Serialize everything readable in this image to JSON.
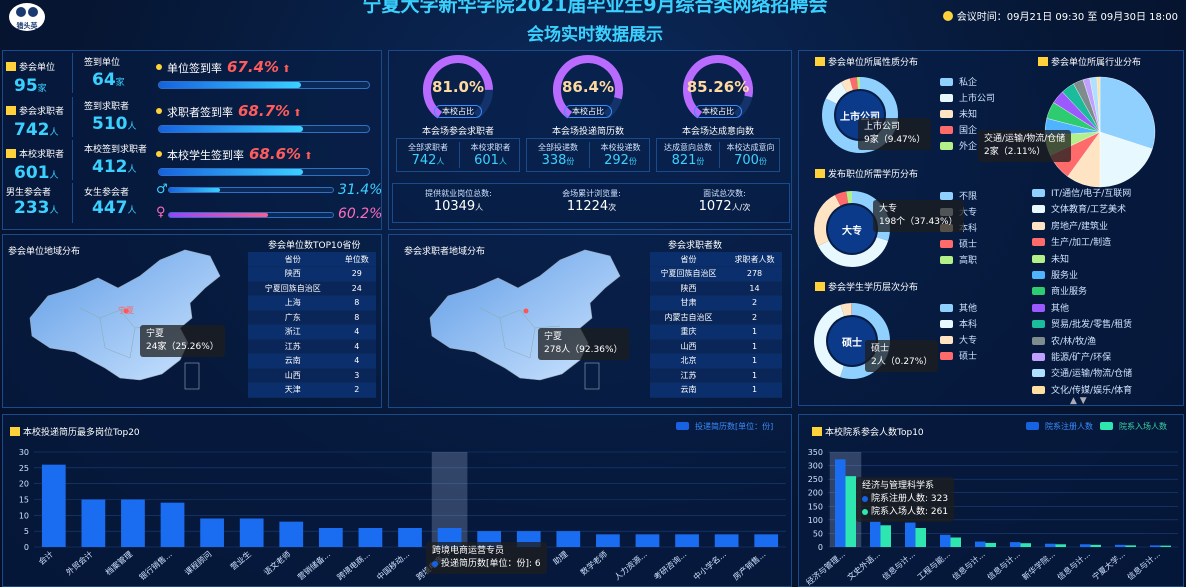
{
  "header": {
    "title": "宁夏大学新华学院2021届毕业生9月综合类网络招聘会",
    "subtitle": "会场实时数据展示",
    "logo_text": "猎头英",
    "meeting_time": "会议时间：09月21日 09:30 至 09月30日 18:00"
  },
  "stats": {
    "rows": [
      {
        "a_label": "参会单位",
        "a_value": "95",
        "a_unit": "家",
        "b_label": "签到单位",
        "b_value": "64",
        "b_unit": "家",
        "rate_label": "单位签到率",
        "rate": "67.4%",
        "rate_fraction": 0.674
      },
      {
        "a_label": "参会求职者",
        "a_value": "742",
        "a_unit": "人",
        "b_label": "签到求职者",
        "b_value": "510",
        "b_unit": "人",
        "rate_label": "求职者签到率",
        "rate": "68.7%",
        "rate_fraction": 0.687
      },
      {
        "a_label": "本校求职者",
        "a_value": "601",
        "a_unit": "人",
        "b_label": "本校签到求职者",
        "b_value": "412",
        "b_unit": "人",
        "rate_label": "本校学生签到率",
        "rate": "68.6%",
        "rate_fraction": 0.686
      }
    ],
    "gender": {
      "male_label": "男生参会者",
      "male_value": "233",
      "male_unit": "人",
      "female_label": "女生参会者",
      "female_value": "447",
      "female_unit": "人",
      "male_rate": "31.4%",
      "male_fraction": 0.314,
      "female_rate": "60.2%",
      "female_fraction": 0.602
    }
  },
  "gauges": [
    {
      "value": "81.0%",
      "fraction": 0.81,
      "inner": "本校占比",
      "caption": "本会场参会求职者",
      "l_label": "全部求职者",
      "l_value": "742",
      "l_unit": "人",
      "r_label": "本校求职者",
      "r_value": "601",
      "r_unit": "人"
    },
    {
      "value": "86.4%",
      "fraction": 0.864,
      "inner": "本校占比",
      "caption": "本会场投递简历数",
      "l_label": "全部投递数",
      "l_value": "338",
      "l_unit": "份",
      "r_label": "本校投递数",
      "r_value": "292",
      "r_unit": "份"
    },
    {
      "value": "85.26%",
      "fraction": 0.8526,
      "inner": "本校占比",
      "caption": "本会场达成意向数",
      "l_label": "达成意向总数",
      "l_value": "821",
      "l_unit": "份",
      "r_label": "本校达成意向",
      "r_value": "700",
      "r_unit": "份"
    }
  ],
  "summary": [
    {
      "label": "提供就业岗位总数:",
      "value": "10349",
      "unit": "人"
    },
    {
      "label": "会场累计浏览量:",
      "value": "11224",
      "unit": "次"
    },
    {
      "label": "面试总次数:",
      "value": "1072",
      "unit": "人/次"
    }
  ],
  "company_map": {
    "title": "参会单位地域分布",
    "table_title": "参会单位数TOP10省份",
    "col1": "省份",
    "col2": "单位数",
    "rows": [
      [
        "陕西",
        "29"
      ],
      [
        "宁夏回族自治区",
        "24"
      ],
      [
        "上海",
        "8"
      ],
      [
        "广东",
        "8"
      ],
      [
        "浙江",
        "4"
      ],
      [
        "江苏",
        "4"
      ],
      [
        "云南",
        "4"
      ],
      [
        "山西",
        "3"
      ],
      [
        "天津",
        "2"
      ]
    ],
    "marker": "宁夏",
    "tip_name": "宁夏",
    "tip_value": "24家（25.26%）"
  },
  "seeker_map": {
    "title": "参会求职者地域分布",
    "table_title": "参会求职者数",
    "col1": "省份",
    "col2": "求职者人数",
    "rows": [
      [
        "宁夏回族自治区",
        "278"
      ],
      [
        "陕西",
        "14"
      ],
      [
        "甘肃",
        "2"
      ],
      [
        "内蒙古自治区",
        "2"
      ],
      [
        "重庆",
        "1"
      ],
      [
        "山西",
        "1"
      ],
      [
        "北京",
        "1"
      ],
      [
        "江苏",
        "1"
      ],
      [
        "云南",
        "1"
      ]
    ],
    "marker": "宁夏",
    "tip_name": "宁夏",
    "tip_value": "278人（92.36%）"
  },
  "nature": {
    "title": "参会单位所属性质分布",
    "center": "上市公司",
    "legend": [
      "私企",
      "上市公司",
      "未知",
      "国企",
      "外企"
    ],
    "colors": [
      "#8fd0ff",
      "#e8f8ff",
      "#ffe4c4",
      "#ff6b6b",
      "#b4f08a"
    ],
    "tip_name": "上市公司",
    "tip_value": "9家（9.47%）"
  },
  "education": {
    "title": "发布职位所需学历分布",
    "center": "大专",
    "legend": [
      "不限",
      "大专",
      "本科",
      "硕士",
      "高职"
    ],
    "colors": [
      "#8fd0ff",
      "#e8f8ff",
      "#ffe4c4",
      "#ff6b6b",
      "#b4f08a"
    ],
    "tip_name": "大专",
    "tip_value": "198个（37.43%）"
  },
  "student_edu": {
    "title": "参会学生学历层次分布",
    "center": "硕士",
    "legend": [
      "其他",
      "本科",
      "大专",
      "硕士"
    ],
    "colors": [
      "#8fd0ff",
      "#e8f8ff",
      "#ffe4c4",
      "#ff6b6b"
    ],
    "tip_name": "硕士",
    "tip_value": "2人（0.27%）"
  },
  "industry": {
    "title": "参会单位所属行业分布",
    "tip_name": "交通/运输/物流/仓储",
    "tip_value": "2家（2.11%）",
    "legend": [
      "IT/通信/电子/互联网",
      "文体教育/工艺美术",
      "房地产/建筑业",
      "生产/加工/制造",
      "未知",
      "服务业",
      "商业服务",
      "其他",
      "贸易/批发/零售/租赁",
      "农/林/牧/渔",
      "能源/矿产/环保",
      "交通/运输/物流/仓储",
      "文化/传媒/娱乐/体育"
    ],
    "colors": [
      "#8fd0ff",
      "#e8f8ff",
      "#ffe4c4",
      "#ff6b6b",
      "#b4f08a",
      "#4fb3ff",
      "#2ecc71",
      "#9b59ff",
      "#1abc9c",
      "#7f8c8d",
      "#c0a0ff",
      "#b0e0ff",
      "#ffe0a0"
    ]
  },
  "positions": {
    "title": "本校投递简历最多岗位Top20",
    "legend": "投递简历数[单位：份]",
    "tip_title": "跨境电商运营专员",
    "tip_line": "投递简历数[单位：份]: 6"
  },
  "colleges": {
    "title": "本校院系参会人数Top10",
    "legend_a": "院系注册人数",
    "legend_b": "院系入场人数",
    "tip_title": "经济与管理科学系",
    "tip_a": "院系注册人数: 323",
    "tip_b": "院系入场人数: 261"
  },
  "chart_data": [
    {
      "type": "bar",
      "title": "本校投递简历最多岗位Top20",
      "ylim": [
        0,
        30
      ],
      "categories": [
        "会计",
        "外贸会计",
        "档案管理",
        "银行销售...",
        "课程顾问",
        "营业生",
        "语文老师",
        "营销储备...",
        "跨境电商...",
        "中国移动...",
        "跨境电商...",
        "",
        "",
        "助理",
        "数学老师",
        "人力资源...",
        "考研咨询...",
        "中小学名...",
        "房产销售..."
      ],
      "series": [
        {
          "name": "投递简历数[单位：份]",
          "values": [
            26,
            15,
            15,
            14,
            9,
            9,
            8,
            6,
            6,
            6,
            6,
            5,
            5,
            5,
            4,
            4,
            4,
            4,
            4
          ]
        }
      ]
    },
    {
      "type": "bar",
      "title": "本校院系参会人数Top10",
      "ylim": [
        0,
        350
      ],
      "categories": [
        "经济与管理...",
        "文史外语...",
        "信息与计...",
        "工程与能...",
        "信息与计...",
        "信息与计...",
        "新华学院...",
        "信息与计...",
        "宁夏大学...",
        "信息与计..."
      ],
      "series": [
        {
          "name": "院系注册人数",
          "values": [
            323,
            95,
            90,
            45,
            20,
            18,
            12,
            10,
            8,
            6
          ]
        },
        {
          "name": "院系入场人数",
          "values": [
            261,
            80,
            70,
            35,
            15,
            14,
            10,
            8,
            6,
            5
          ]
        }
      ]
    }
  ]
}
